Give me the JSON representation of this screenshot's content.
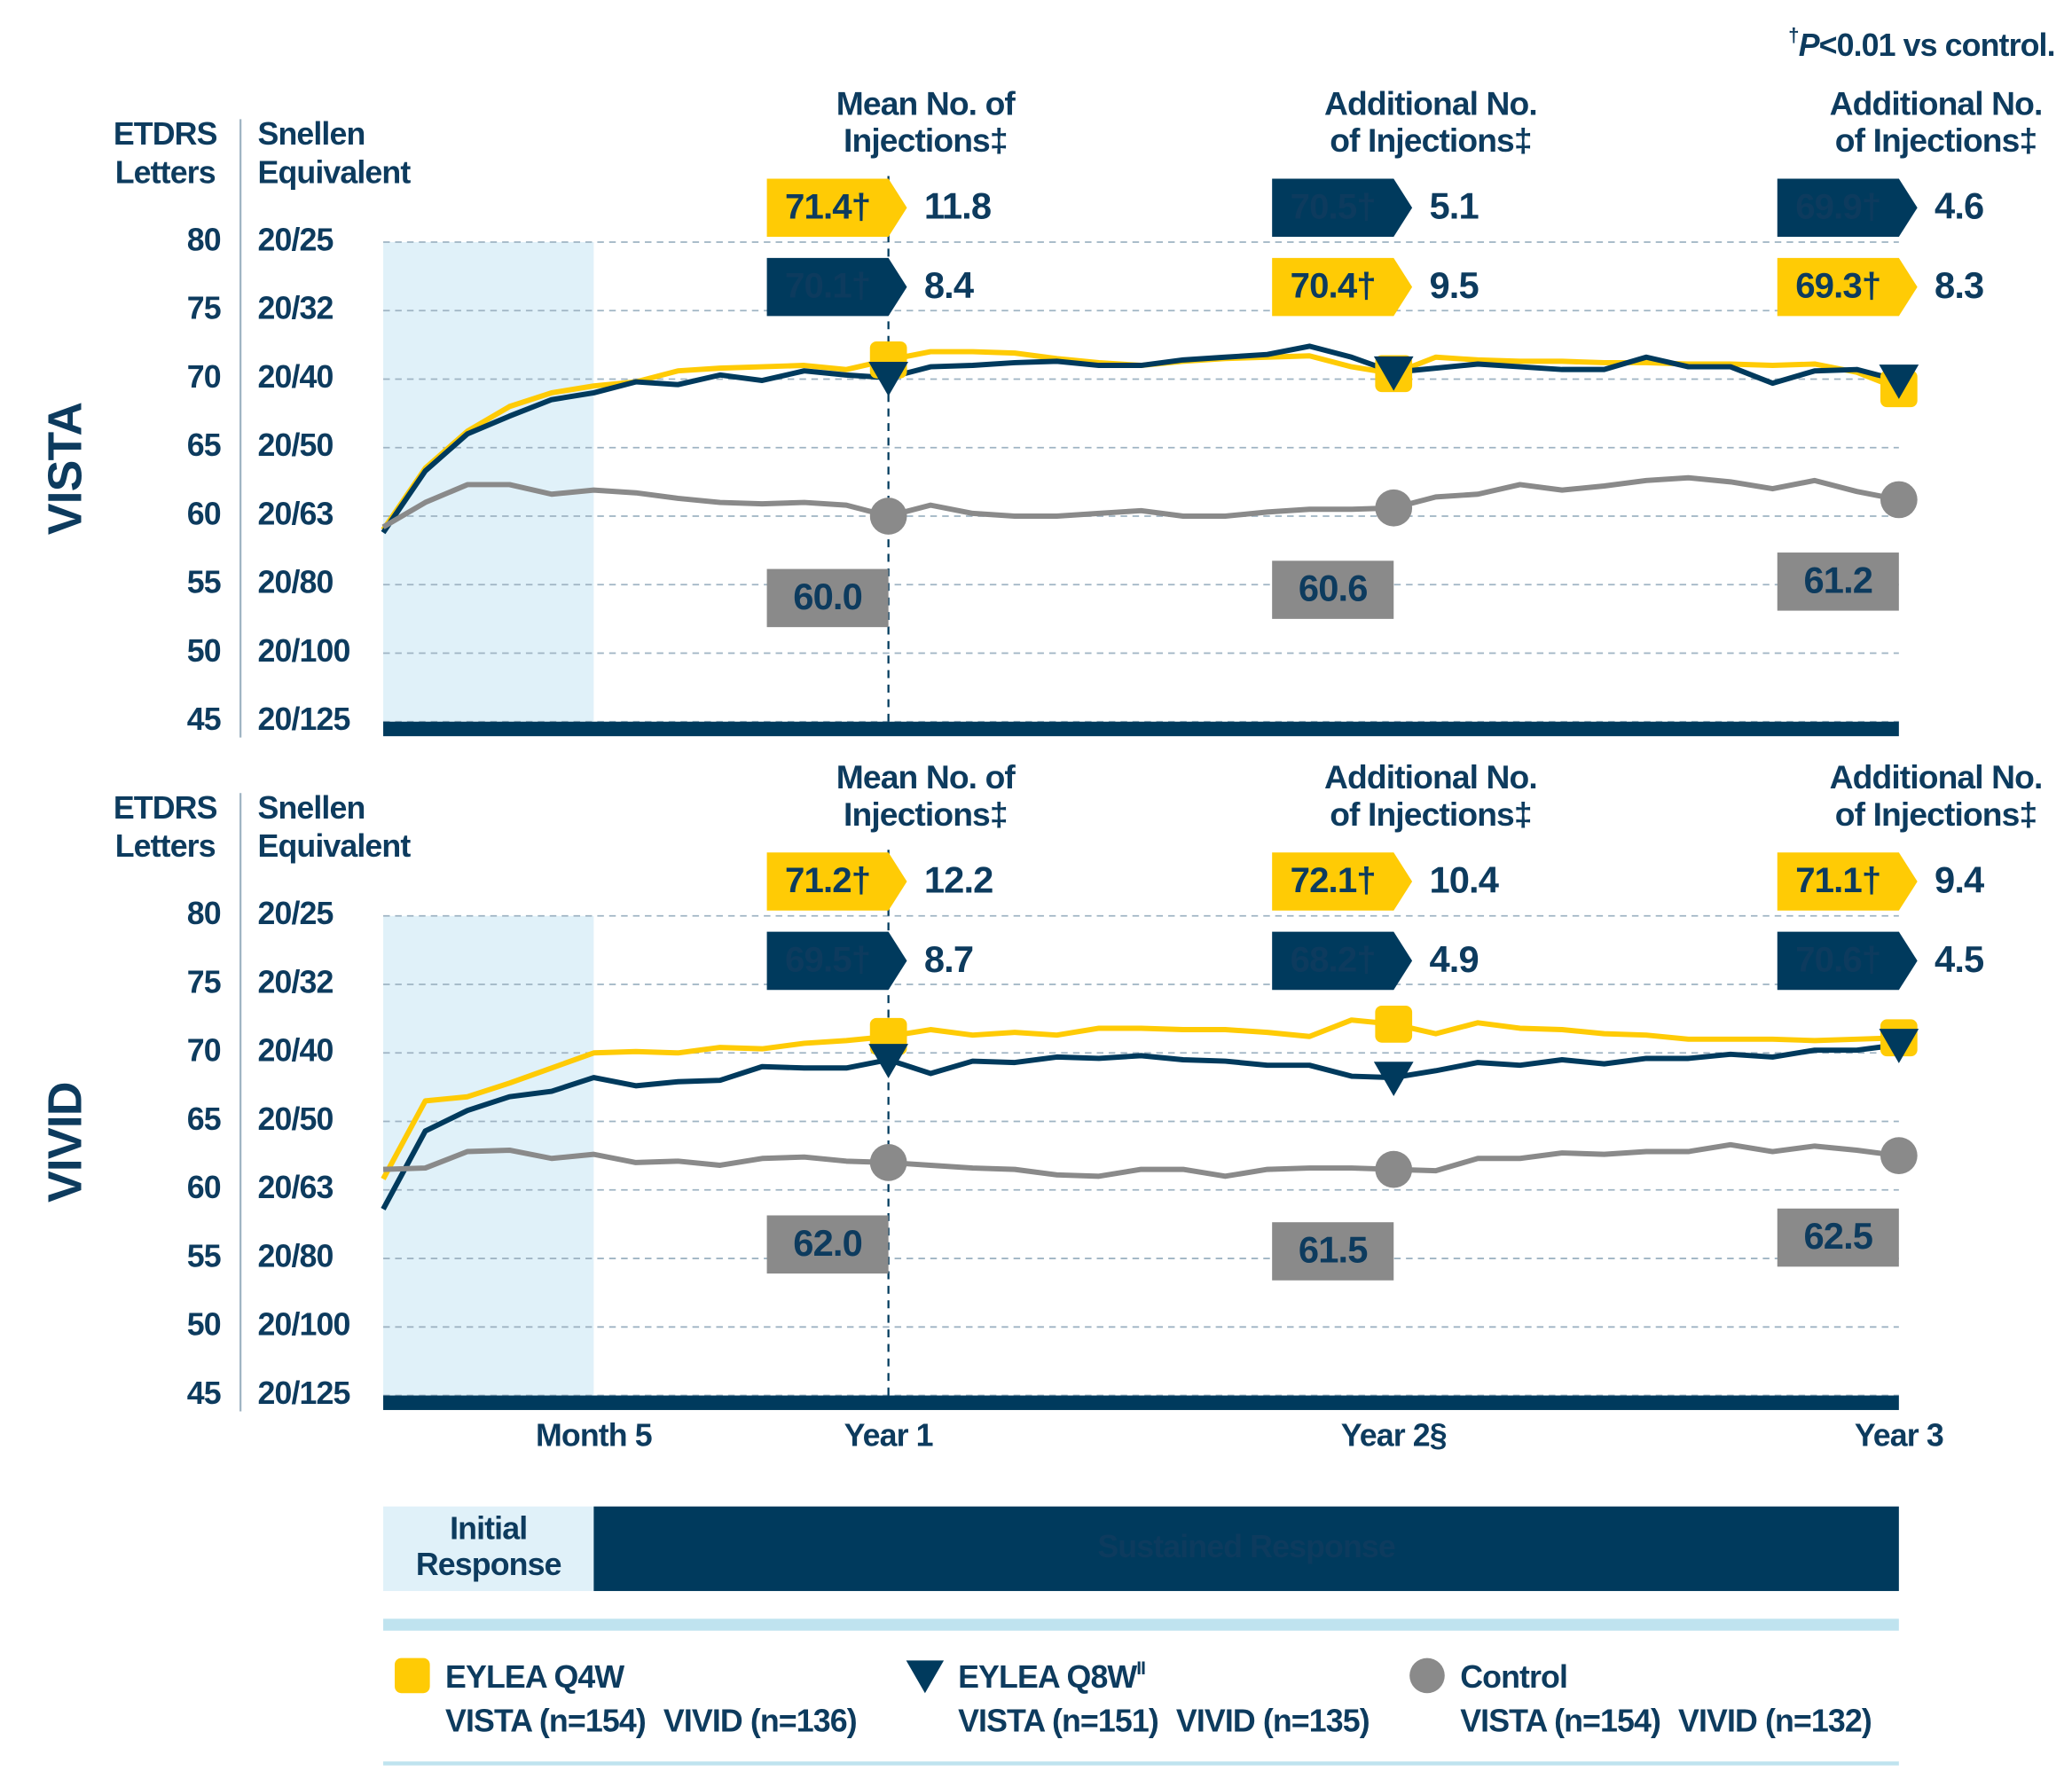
{
  "footnote": [
    "†",
    "P",
    "<0.01 vs control."
  ],
  "chart_data": [
    {
      "type": "line",
      "title": "VISTA",
      "ylabel": [
        "ETDRS",
        "Letters"
      ],
      "y2label": [
        "Snellen",
        "Equivalent"
      ],
      "x": [
        0,
        1,
        2,
        3,
        4,
        5,
        6,
        7,
        8,
        9,
        10,
        11,
        12,
        13,
        14,
        15,
        16,
        17,
        18,
        19,
        20,
        21,
        22,
        23,
        24,
        25,
        26,
        27,
        28,
        29,
        30,
        31,
        32,
        33,
        34,
        35,
        36
      ],
      "xlim": [
        0,
        36
      ],
      "ylim": [
        45,
        80
      ],
      "yticks": [
        45,
        50,
        55,
        60,
        65,
        70,
        75,
        80
      ],
      "y2lim": [
        45,
        80
      ],
      "y2ticks": [
        {
          "value": 45,
          "label": "20/125"
        },
        {
          "value": 50,
          "label": "20/100"
        },
        {
          "value": 55,
          "label": "20/80"
        },
        {
          "value": 60,
          "label": "20/63"
        },
        {
          "value": 65,
          "label": "20/50"
        },
        {
          "value": 70,
          "label": "20/40"
        },
        {
          "value": 75,
          "label": "20/32"
        },
        {
          "value": 80,
          "label": "20/25"
        }
      ],
      "grid": true,
      "callout_headings": [
        {
          "x": 12,
          "lines": [
            "Mean No. of",
            "Injections‡"
          ]
        },
        {
          "x": 24,
          "lines": [
            "Additional No.",
            "of Injections‡"
          ]
        },
        {
          "x": 36,
          "lines": [
            "Additional No.",
            "of Injections‡"
          ]
        }
      ],
      "series": [
        {
          "color": "#ffcb05",
          "marker": "square",
          "values": [
            59,
            63.5,
            66.2,
            68,
            69,
            69.5,
            69.8,
            70.6,
            70.8,
            70.9,
            71,
            70.7,
            71.4,
            72,
            72,
            71.9,
            71.5,
            71.2,
            71,
            71.3,
            71.5,
            71.6,
            71.7,
            70.9,
            70.4,
            71.6,
            71.4,
            71.3,
            71.3,
            71.2,
            71.2,
            71.1,
            71.1,
            71,
            71.1,
            70.5,
            69.3
          ],
          "callouts": [
            {
              "x": 12,
              "value": 71.4,
              "value_label": "71.4†",
              "injections": 11.8
            },
            {
              "x": 24,
              "value": 70.4,
              "value_label": "70.4†",
              "injections": 9.5
            },
            {
              "x": 36,
              "value": 69.3,
              "value_label": "69.3†",
              "injections": 8.3
            }
          ]
        },
        {
          "color": "#003a5d",
          "marker": "triangle",
          "values": [
            58.8,
            63.3,
            66,
            67.3,
            68.5,
            69,
            69.8,
            69.6,
            70.3,
            69.9,
            70.6,
            70.3,
            70.1,
            70.9,
            71,
            71.2,
            71.3,
            71,
            71,
            71.4,
            71.6,
            71.8,
            72.4,
            71.6,
            70.5,
            70.8,
            71.1,
            70.9,
            70.7,
            70.7,
            71.6,
            70.9,
            70.9,
            69.7,
            70.6,
            70.7,
            69.9
          ],
          "callouts": [
            {
              "x": 12,
              "value": 70.1,
              "value_label": "70.1†",
              "injections": 8.4
            },
            {
              "x": 24,
              "value": 70.5,
              "value_label": "70.5†",
              "injections": 5.1
            },
            {
              "x": 36,
              "value": 69.9,
              "value_label": "69.9†",
              "injections": 4.6
            }
          ]
        },
        {
          "color": "#8a8a8a",
          "marker": "circle",
          "values": [
            59.2,
            61,
            62.3,
            62.3,
            61.6,
            61.9,
            61.7,
            61.3,
            61,
            60.9,
            61,
            60.8,
            60,
            60.8,
            60.2,
            60,
            60,
            60.2,
            60.4,
            60,
            60,
            60.3,
            60.5,
            60.5,
            60.6,
            61.4,
            61.6,
            62.3,
            61.9,
            62.2,
            62.6,
            62.8,
            62.5,
            62,
            62.6,
            61.8,
            61.2
          ],
          "callouts": [
            {
              "x": 12,
              "value": 60.0,
              "value_label": "60.0"
            },
            {
              "x": 24,
              "value": 60.6,
              "value_label": "60.6"
            },
            {
              "x": 36,
              "value": 61.2,
              "value_label": "61.2"
            }
          ]
        }
      ]
    },
    {
      "type": "line",
      "title": "VIVID",
      "ylabel": [
        "ETDRS",
        "Letters"
      ],
      "y2label": [
        "Snellen",
        "Equivalent"
      ],
      "x": [
        0,
        1,
        2,
        3,
        4,
        5,
        6,
        7,
        8,
        9,
        10,
        11,
        12,
        13,
        14,
        15,
        16,
        17,
        18,
        19,
        20,
        21,
        22,
        23,
        24,
        25,
        26,
        27,
        28,
        29,
        30,
        31,
        32,
        33,
        34,
        35,
        36
      ],
      "xlim": [
        0,
        36
      ],
      "ylim": [
        45,
        80
      ],
      "yticks": [
        45,
        50,
        55,
        60,
        65,
        70,
        75,
        80
      ],
      "y2lim": [
        45,
        80
      ],
      "y2ticks": [
        {
          "value": 45,
          "label": "20/125"
        },
        {
          "value": 50,
          "label": "20/100"
        },
        {
          "value": 55,
          "label": "20/80"
        },
        {
          "value": 60,
          "label": "20/63"
        },
        {
          "value": 65,
          "label": "20/50"
        },
        {
          "value": 70,
          "label": "20/40"
        },
        {
          "value": 75,
          "label": "20/32"
        },
        {
          "value": 80,
          "label": "20/25"
        }
      ],
      "xticks": [
        {
          "value": 5,
          "label": "Month 5"
        },
        {
          "value": 12,
          "label": "Year 1"
        },
        {
          "value": 24,
          "label": "Year 2§"
        },
        {
          "value": 36,
          "label": "Year 3"
        }
      ],
      "grid": true,
      "callout_headings": [
        {
          "x": 12,
          "lines": [
            "Mean No. of",
            "Injections‡"
          ]
        },
        {
          "x": 24,
          "lines": [
            "Additional No.",
            "of Injections‡"
          ]
        },
        {
          "x": 36,
          "lines": [
            "Additional No.",
            "of Injections‡"
          ]
        }
      ],
      "series": [
        {
          "color": "#ffcb05",
          "marker": "square",
          "values": [
            60.8,
            66.5,
            66.8,
            67.8,
            68.9,
            70,
            70.1,
            70,
            70.4,
            70.3,
            70.7,
            70.9,
            71.2,
            71.7,
            71.3,
            71.5,
            71.3,
            71.8,
            71.8,
            71.7,
            71.7,
            71.5,
            71.2,
            72.4,
            72.1,
            71.4,
            72.2,
            71.8,
            71.7,
            71.4,
            71.3,
            71,
            71,
            71,
            70.9,
            71,
            71.1
          ],
          "callouts": [
            {
              "x": 12,
              "value": 71.2,
              "value_label": "71.2†",
              "injections": 12.2
            },
            {
              "x": 24,
              "value": 72.1,
              "value_label": "72.1†",
              "injections": 10.4
            },
            {
              "x": 36,
              "value": 71.1,
              "value_label": "71.1†",
              "injections": 9.4
            }
          ]
        },
        {
          "color": "#003a5d",
          "marker": "triangle",
          "values": [
            58.6,
            64.3,
            65.8,
            66.8,
            67.2,
            68.2,
            67.6,
            67.9,
            68,
            69,
            68.9,
            68.9,
            69.5,
            68.5,
            69.4,
            69.3,
            69.7,
            69.6,
            69.8,
            69.5,
            69.4,
            69.1,
            69.1,
            68.3,
            68.2,
            68.7,
            69.3,
            69.1,
            69.5,
            69.2,
            69.6,
            69.6,
            69.9,
            69.7,
            70.2,
            70.2,
            70.6
          ],
          "callouts": [
            {
              "x": 12,
              "value": 69.5,
              "value_label": "69.5†",
              "injections": 8.7
            },
            {
              "x": 24,
              "value": 68.2,
              "value_label": "68.2†",
              "injections": 4.9
            },
            {
              "x": 36,
              "value": 70.6,
              "value_label": "70.6†",
              "injections": 4.5
            }
          ]
        },
        {
          "color": "#8a8a8a",
          "marker": "circle",
          "values": [
            61.5,
            61.6,
            62.8,
            62.9,
            62.3,
            62.6,
            62,
            62.1,
            61.8,
            62.3,
            62.4,
            62.1,
            62,
            61.8,
            61.6,
            61.5,
            61.1,
            61,
            61.5,
            61.5,
            61,
            61.5,
            61.6,
            61.6,
            61.5,
            61.4,
            62.3,
            62.3,
            62.7,
            62.6,
            62.8,
            62.8,
            63.3,
            62.8,
            63.2,
            62.9,
            62.5
          ],
          "callouts": [
            {
              "x": 12,
              "value": 62.0,
              "value_label": "62.0"
            },
            {
              "x": 24,
              "value": 61.5,
              "value_label": "61.5"
            },
            {
              "x": 36,
              "value": 62.5,
              "value_label": "62.5"
            }
          ]
        }
      ]
    }
  ],
  "phases": [
    {
      "lines": [
        "Initial",
        "Response"
      ],
      "range": [
        0,
        5
      ]
    },
    {
      "lines": [
        "Sustained Response"
      ],
      "range": [
        5,
        36
      ]
    }
  ],
  "legend": [
    {
      "name": "EYLEA Q4W",
      "color": "#ffcb05",
      "marker": "square",
      "counts": [
        "VISTA (n=154)",
        "VIVID (n=136)"
      ]
    },
    {
      "name": "EYLEA Q8W",
      "name_sup": "II",
      "color": "#003a5d",
      "marker": "triangle",
      "counts": [
        "VISTA (n=151)",
        "VIVID (n=135)"
      ]
    },
    {
      "name": "Control",
      "color": "#8a8a8a",
      "marker": "circle",
      "counts": [
        "VISTA (n=154)",
        "VIVID (n=132)"
      ]
    }
  ]
}
